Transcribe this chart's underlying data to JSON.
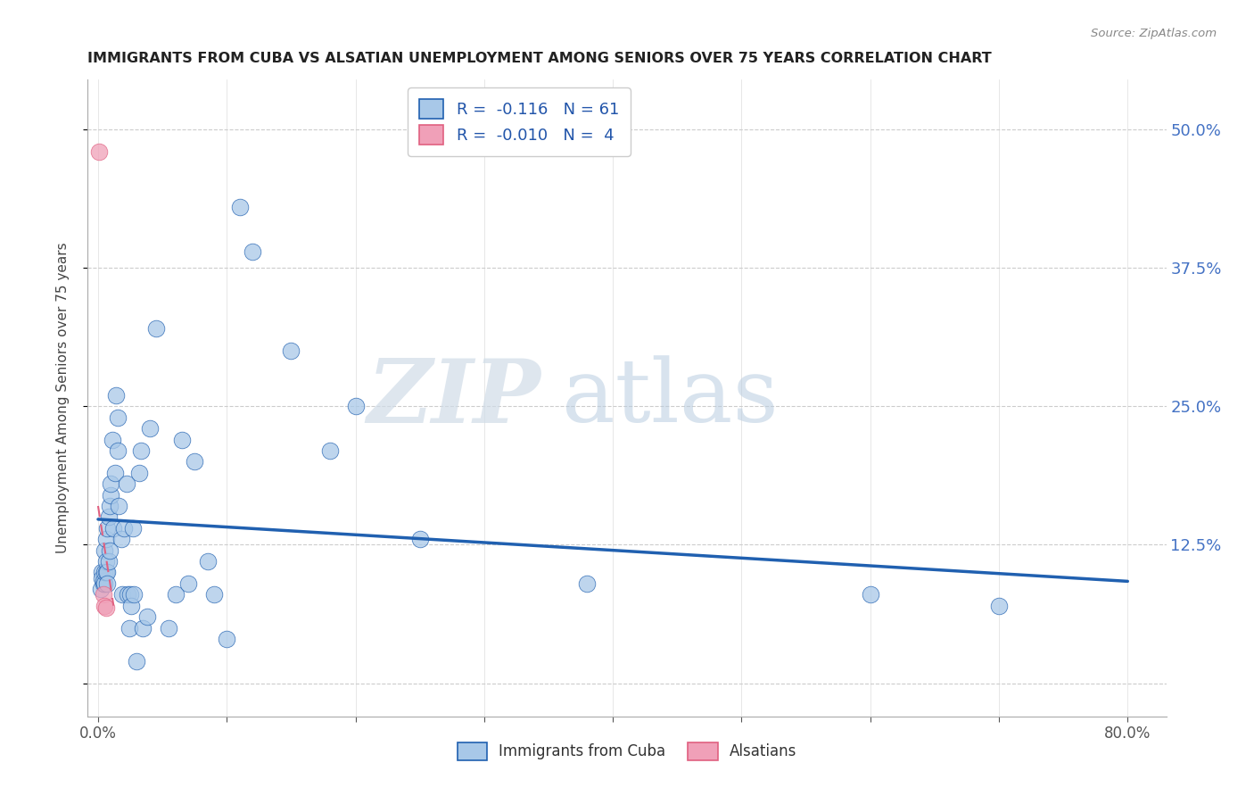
{
  "title": "IMMIGRANTS FROM CUBA VS ALSATIAN UNEMPLOYMENT AMONG SENIORS OVER 75 YEARS CORRELATION CHART",
  "source": "Source: ZipAtlas.com",
  "ylabel": "Unemployment Among Seniors over 75 years",
  "y_ticks": [
    0.0,
    0.125,
    0.25,
    0.375,
    0.5
  ],
  "y_tick_labels": [
    "",
    "12.5%",
    "25.0%",
    "37.5%",
    "50.0%"
  ],
  "x_tick_positions": [
    0.0,
    0.1,
    0.2,
    0.3,
    0.4,
    0.5,
    0.6,
    0.7,
    0.8
  ],
  "xlim": [
    -0.008,
    0.83
  ],
  "ylim": [
    -0.03,
    0.545
  ],
  "blue_R": "-0.116",
  "blue_N": "61",
  "pink_R": "-0.010",
  "pink_N": "4",
  "legend_label_blue": "Immigrants from Cuba",
  "legend_label_pink": "Alsatians",
  "scatter_color_blue": "#A8C8E8",
  "scatter_color_pink": "#F0A0B8",
  "trend_color_blue": "#2060B0",
  "trend_color_pink": "#E06080",
  "watermark_zip": "ZIP",
  "watermark_atlas": "atlas",
  "blue_scatter_x": [
    0.002,
    0.003,
    0.003,
    0.004,
    0.004,
    0.005,
    0.005,
    0.005,
    0.006,
    0.006,
    0.006,
    0.007,
    0.007,
    0.007,
    0.008,
    0.008,
    0.009,
    0.009,
    0.01,
    0.01,
    0.011,
    0.012,
    0.013,
    0.014,
    0.015,
    0.015,
    0.016,
    0.018,
    0.019,
    0.02,
    0.022,
    0.023,
    0.024,
    0.025,
    0.026,
    0.027,
    0.028,
    0.03,
    0.032,
    0.033,
    0.035,
    0.038,
    0.04,
    0.045,
    0.055,
    0.06,
    0.065,
    0.07,
    0.075,
    0.085,
    0.09,
    0.1,
    0.11,
    0.12,
    0.15,
    0.18,
    0.2,
    0.25,
    0.38,
    0.6,
    0.7
  ],
  "blue_scatter_y": [
    0.085,
    0.1,
    0.095,
    0.09,
    0.092,
    0.09,
    0.1,
    0.12,
    0.1,
    0.11,
    0.13,
    0.1,
    0.09,
    0.14,
    0.15,
    0.11,
    0.12,
    0.16,
    0.17,
    0.18,
    0.22,
    0.14,
    0.19,
    0.26,
    0.21,
    0.24,
    0.16,
    0.13,
    0.08,
    0.14,
    0.18,
    0.08,
    0.05,
    0.08,
    0.07,
    0.14,
    0.08,
    0.02,
    0.19,
    0.21,
    0.05,
    0.06,
    0.23,
    0.32,
    0.05,
    0.08,
    0.22,
    0.09,
    0.2,
    0.11,
    0.08,
    0.04,
    0.43,
    0.39,
    0.3,
    0.21,
    0.25,
    0.13,
    0.09,
    0.08,
    0.07
  ],
  "pink_scatter_x": [
    0.001,
    0.004,
    0.005,
    0.006
  ],
  "pink_scatter_y": [
    0.48,
    0.08,
    0.07,
    0.068
  ],
  "blue_trend_x": [
    0.0,
    0.8
  ],
  "blue_trend_y": [
    0.148,
    0.092
  ],
  "pink_trend_x": [
    0.0,
    0.012
  ],
  "pink_trend_y": [
    0.16,
    0.07
  ]
}
